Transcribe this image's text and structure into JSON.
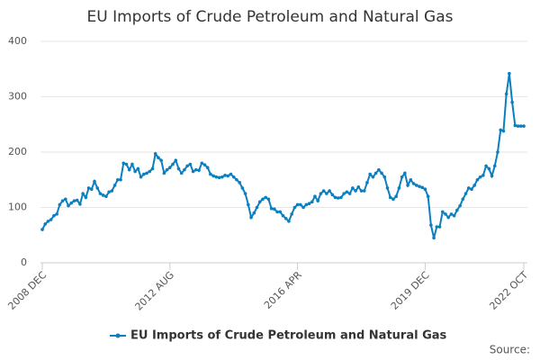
{
  "chart_data": {
    "type": "line",
    "title": "EU Imports of Crude Petroleum and Natural Gas",
    "source": "Source:",
    "categories": [
      "2008 DEC",
      null,
      null,
      null,
      null,
      null,
      null,
      null,
      null,
      null,
      null,
      null,
      null,
      null,
      null,
      null,
      null,
      null,
      null,
      null,
      null,
      null,
      null,
      null,
      null,
      null,
      null,
      null,
      null,
      null,
      null,
      null,
      null,
      null,
      null,
      null,
      null,
      null,
      null,
      null,
      null,
      null,
      null,
      null,
      "2012 AUG",
      null,
      null,
      null,
      null,
      null,
      null,
      null,
      null,
      null,
      null,
      null,
      null,
      null,
      null,
      null,
      null,
      null,
      null,
      null,
      null,
      null,
      null,
      null,
      null,
      null,
      null,
      null,
      null,
      null,
      null,
      null,
      null,
      null,
      null,
      null,
      null,
      null,
      null,
      null,
      null,
      null,
      null,
      null,
      "2016 APR",
      null,
      null,
      null,
      null,
      null,
      null,
      null,
      null,
      null,
      null,
      null,
      null,
      null,
      null,
      null,
      null,
      null,
      null,
      null,
      null,
      null,
      null,
      null,
      null,
      null,
      null,
      null,
      null,
      null,
      null,
      null,
      null,
      null,
      null,
      null,
      null,
      null,
      null,
      null,
      null,
      null,
      null,
      null,
      "2019 DEC",
      null,
      null,
      null,
      null,
      null,
      null,
      null,
      null,
      null,
      null,
      null,
      null,
      null,
      null,
      null,
      null,
      null,
      null,
      null,
      null,
      null,
      null,
      null,
      null,
      null,
      null,
      null,
      null,
      null,
      null,
      null,
      null,
      null,
      "2022 OCT"
    ],
    "series": [
      {
        "name": "EU Imports of Crude Petroleum and Natural Gas",
        "color": "#0b7fbf",
        "values": [
          60,
          70,
          75,
          78,
          85,
          88,
          105,
          112,
          115,
          103,
          108,
          112,
          113,
          106,
          125,
          118,
          135,
          133,
          147,
          135,
          125,
          122,
          120,
          128,
          130,
          140,
          150,
          150,
          180,
          178,
          168,
          178,
          165,
          170,
          155,
          160,
          162,
          165,
          170,
          197,
          190,
          185,
          162,
          168,
          172,
          178,
          185,
          170,
          162,
          168,
          175,
          178,
          165,
          168,
          167,
          180,
          177,
          172,
          160,
          157,
          155,
          154,
          155,
          158,
          157,
          160,
          155,
          150,
          145,
          135,
          125,
          105,
          82,
          90,
          100,
          110,
          115,
          118,
          115,
          98,
          97,
          92,
          92,
          85,
          80,
          75,
          88,
          100,
          105,
          105,
          100,
          105,
          107,
          110,
          120,
          112,
          125,
          130,
          125,
          130,
          123,
          118,
          117,
          118,
          125,
          128,
          125,
          135,
          130,
          137,
          130,
          130,
          145,
          160,
          155,
          162,
          168,
          162,
          155,
          135,
          118,
          115,
          120,
          135,
          155,
          162,
          140,
          150,
          143,
          140,
          138,
          136,
          133,
          120,
          68,
          45,
          65,
          65,
          92,
          88,
          82,
          88,
          85,
          95,
          103,
          115,
          125,
          135,
          133,
          140,
          150,
          155,
          158,
          175,
          170,
          157,
          175,
          200,
          240,
          238,
          305,
          342,
          290,
          248,
          247,
          247,
          247
        ]
      }
    ],
    "ylim": [
      0,
      400
    ],
    "yticks": [
      0,
      100,
      200,
      300,
      400
    ],
    "grid": true
  }
}
